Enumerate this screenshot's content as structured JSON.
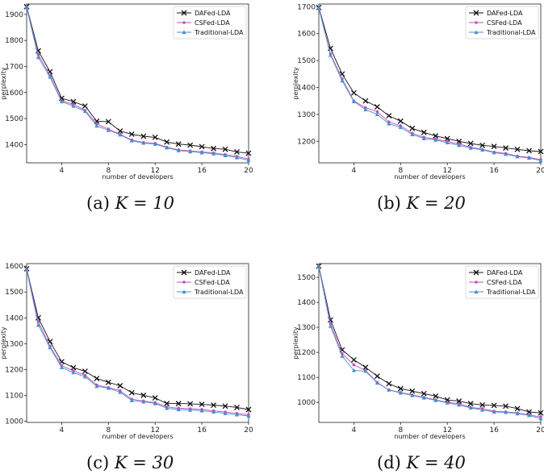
{
  "chart_data": [
    {
      "type": "line",
      "caption_prefix": "(a)",
      "caption_math": "K = 10",
      "xlabel": "number of developers",
      "ylabel": "perplexity",
      "xlim": [
        1,
        20
      ],
      "ylim": [
        1330,
        1940
      ],
      "xticks": [
        4,
        8,
        12,
        16,
        20
      ],
      "yticks": [
        1400,
        1500,
        1600,
        1700,
        1800,
        1900
      ],
      "legend": "top-right",
      "x": [
        1,
        2,
        3,
        4,
        5,
        6,
        7,
        8,
        9,
        10,
        11,
        12,
        13,
        14,
        15,
        16,
        17,
        18,
        19,
        20
      ],
      "series": [
        {
          "name": "DAFed-LDA",
          "color": "#111111",
          "marker": "x",
          "values": [
            1930,
            1760,
            1680,
            1578,
            1565,
            1548,
            1490,
            1488,
            1452,
            1440,
            1432,
            1428,
            1410,
            1402,
            1398,
            1392,
            1385,
            1382,
            1372,
            1367
          ]
        },
        {
          "name": "CSFed-LDA",
          "color": "#c050b8",
          "marker": "dot",
          "values": [
            1928,
            1745,
            1665,
            1568,
            1555,
            1532,
            1480,
            1460,
            1440,
            1418,
            1408,
            1405,
            1390,
            1380,
            1376,
            1372,
            1368,
            1362,
            1355,
            1345
          ]
        },
        {
          "name": "Traditional-LDA",
          "color": "#4a8ed0",
          "marker": "triangle",
          "values": [
            1927,
            1735,
            1660,
            1565,
            1548,
            1528,
            1472,
            1455,
            1438,
            1415,
            1406,
            1402,
            1388,
            1377,
            1373,
            1369,
            1365,
            1358,
            1350,
            1340
          ]
        }
      ]
    },
    {
      "type": "line",
      "caption_prefix": "(b)",
      "caption_math": "K = 20",
      "xlabel": "number of developers",
      "ylabel": "perplexity",
      "xlim": [
        1,
        20
      ],
      "ylim": [
        1120,
        1710
      ],
      "xticks": [
        4,
        8,
        12,
        16,
        20
      ],
      "yticks": [
        1200,
        1300,
        1400,
        1500,
        1600,
        1700
      ],
      "legend": "top-right",
      "x": [
        1,
        2,
        3,
        4,
        5,
        6,
        7,
        8,
        9,
        10,
        11,
        12,
        13,
        14,
        15,
        16,
        17,
        18,
        19,
        20
      ],
      "series": [
        {
          "name": "DAFed-LDA",
          "color": "#111111",
          "marker": "x",
          "values": [
            1697,
            1545,
            1450,
            1380,
            1350,
            1328,
            1295,
            1275,
            1248,
            1233,
            1220,
            1210,
            1200,
            1192,
            1185,
            1181,
            1175,
            1170,
            1165,
            1162
          ]
        },
        {
          "name": "CSFed-LDA",
          "color": "#c050b8",
          "marker": "dot",
          "values": [
            1696,
            1525,
            1432,
            1350,
            1325,
            1310,
            1272,
            1258,
            1230,
            1215,
            1208,
            1200,
            1190,
            1178,
            1170,
            1160,
            1155,
            1145,
            1140,
            1132
          ]
        },
        {
          "name": "Traditional-LDA",
          "color": "#4a8ed0",
          "marker": "triangle",
          "values": [
            1695,
            1520,
            1425,
            1348,
            1318,
            1300,
            1265,
            1252,
            1225,
            1210,
            1205,
            1195,
            1185,
            1175,
            1168,
            1158,
            1152,
            1143,
            1138,
            1128
          ]
        }
      ]
    },
    {
      "type": "line",
      "caption_prefix": "(c)",
      "caption_math": "K = 30",
      "xlabel": "number of developers",
      "ylabel": "perplexity",
      "xlim": [
        1,
        20
      ],
      "ylim": [
        995,
        1610
      ],
      "xticks": [
        4,
        8,
        12,
        16,
        20
      ],
      "yticks": [
        1000,
        1100,
        1200,
        1300,
        1400,
        1500,
        1600
      ],
      "legend": "top-right",
      "x": [
        1,
        2,
        3,
        4,
        5,
        6,
        7,
        8,
        9,
        10,
        11,
        12,
        13,
        14,
        15,
        16,
        17,
        18,
        19,
        20
      ],
      "series": [
        {
          "name": "DAFed-LDA",
          "color": "#111111",
          "marker": "x",
          "values": [
            1590,
            1400,
            1308,
            1230,
            1207,
            1193,
            1165,
            1150,
            1137,
            1110,
            1100,
            1090,
            1068,
            1068,
            1067,
            1065,
            1062,
            1058,
            1053,
            1045
          ]
        },
        {
          "name": "CSFed-LDA",
          "color": "#c050b8",
          "marker": "dot",
          "values": [
            1588,
            1385,
            1290,
            1215,
            1195,
            1178,
            1140,
            1130,
            1118,
            1085,
            1078,
            1072,
            1055,
            1050,
            1048,
            1045,
            1040,
            1035,
            1030,
            1025
          ]
        },
        {
          "name": "Traditional-LDA",
          "color": "#4a8ed0",
          "marker": "triangle",
          "values": [
            1587,
            1372,
            1285,
            1208,
            1188,
            1172,
            1135,
            1128,
            1112,
            1080,
            1075,
            1068,
            1050,
            1045,
            1043,
            1040,
            1036,
            1030,
            1025,
            1020
          ]
        }
      ]
    },
    {
      "type": "line",
      "caption_prefix": "(d)",
      "caption_math": "K = 40",
      "xlabel": "number of developers",
      "ylabel": "perplexity",
      "xlim": [
        1,
        20
      ],
      "ylim": [
        920,
        1555
      ],
      "xticks": [
        4,
        8,
        12,
        16,
        20
      ],
      "yticks": [
        1000,
        1100,
        1200,
        1300,
        1400,
        1500
      ],
      "legend": "top-right",
      "x": [
        1,
        2,
        3,
        4,
        5,
        6,
        7,
        8,
        9,
        10,
        11,
        12,
        13,
        14,
        15,
        16,
        17,
        18,
        19,
        20
      ],
      "series": [
        {
          "name": "DAFed-LDA",
          "color": "#111111",
          "marker": "x",
          "values": [
            1545,
            1330,
            1210,
            1170,
            1140,
            1105,
            1075,
            1055,
            1045,
            1035,
            1025,
            1010,
            1005,
            995,
            990,
            988,
            985,
            975,
            962,
            958
          ]
        },
        {
          "name": "CSFed-LDA",
          "color": "#c050b8",
          "marker": "dot",
          "values": [
            1543,
            1315,
            1195,
            1150,
            1128,
            1080,
            1050,
            1040,
            1030,
            1020,
            1010,
            1000,
            995,
            980,
            975,
            965,
            962,
            958,
            950,
            942
          ]
        },
        {
          "name": "Traditional-LDA",
          "color": "#4a8ed0",
          "marker": "triangle",
          "values": [
            1542,
            1305,
            1185,
            1128,
            1125,
            1078,
            1050,
            1038,
            1028,
            1018,
            1008,
            998,
            990,
            978,
            970,
            962,
            960,
            955,
            948,
            935
          ]
        }
      ]
    }
  ]
}
